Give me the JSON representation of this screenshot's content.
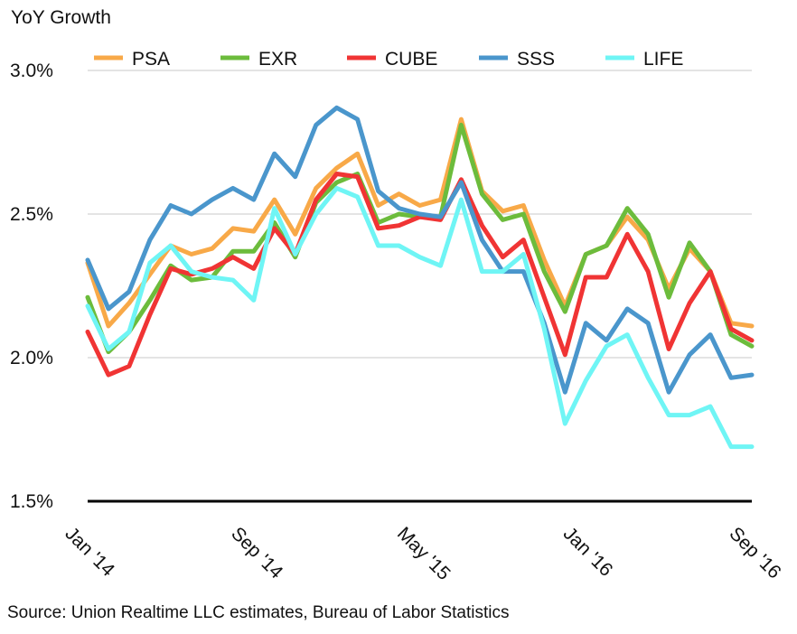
{
  "chart_data": {
    "type": "line",
    "ylabel": "YoY Growth",
    "ylim": [
      1.5,
      3.0
    ],
    "yticks": [
      1.5,
      2.0,
      2.5,
      3.0
    ],
    "ytick_labels": [
      "1.5%",
      "2.0%",
      "2.5%",
      "3.0%"
    ],
    "x": [
      "Jan '14",
      "Feb '14",
      "Mar '14",
      "Apr '14",
      "May '14",
      "Jun '14",
      "Jul '14",
      "Aug '14",
      "Sep '14",
      "Oct '14",
      "Nov '14",
      "Dec '14",
      "Jan '15",
      "Feb '15",
      "Mar '15",
      "Apr '15",
      "May '15",
      "Jun '15",
      "Jul '15",
      "Aug '15",
      "Sep '15",
      "Oct '15",
      "Nov '15",
      "Dec '15",
      "Jan '16",
      "Feb '16",
      "Mar '16",
      "Apr '16",
      "May '16",
      "Jun '16",
      "Jul '16",
      "Aug '16",
      "Sep '16"
    ],
    "xticks": [
      {
        "index": 0,
        "label": "Jan '14"
      },
      {
        "index": 8,
        "label": "Sep '14"
      },
      {
        "index": 16,
        "label": "May '15"
      },
      {
        "index": 24,
        "label": "Jan '16"
      },
      {
        "index": 32,
        "label": "Sep '16"
      }
    ],
    "grid": true,
    "legend_position": "top",
    "series": [
      {
        "name": "PSA",
        "color": "#F8A948",
        "values": [
          2.33,
          2.11,
          2.19,
          2.29,
          2.39,
          2.36,
          2.38,
          2.45,
          2.44,
          2.55,
          2.43,
          2.59,
          2.66,
          2.71,
          2.53,
          2.57,
          2.53,
          2.55,
          2.83,
          2.58,
          2.51,
          2.53,
          2.34,
          2.18,
          2.36,
          2.39,
          2.49,
          2.41,
          2.24,
          2.38,
          2.3,
          2.12,
          2.11
        ]
      },
      {
        "name": "EXR",
        "color": "#6CBC3C",
        "values": [
          2.21,
          2.02,
          2.09,
          2.2,
          2.32,
          2.27,
          2.28,
          2.37,
          2.37,
          2.47,
          2.35,
          2.54,
          2.61,
          2.64,
          2.47,
          2.5,
          2.49,
          2.49,
          2.81,
          2.57,
          2.48,
          2.5,
          2.3,
          2.16,
          2.36,
          2.39,
          2.52,
          2.43,
          2.21,
          2.4,
          2.3,
          2.08,
          2.04
        ]
      },
      {
        "name": "CUBE",
        "color": "#F03434",
        "values": [
          2.09,
          1.94,
          1.97,
          2.15,
          2.31,
          2.29,
          2.31,
          2.35,
          2.31,
          2.45,
          2.36,
          2.55,
          2.64,
          2.63,
          2.45,
          2.46,
          2.49,
          2.48,
          2.62,
          2.46,
          2.35,
          2.41,
          2.21,
          2.01,
          2.28,
          2.28,
          2.43,
          2.3,
          2.03,
          2.19,
          2.3,
          2.1,
          2.06
        ]
      },
      {
        "name": "SSS",
        "color": "#4A96CC",
        "values": [
          2.34,
          2.17,
          2.23,
          2.41,
          2.53,
          2.5,
          2.55,
          2.59,
          2.55,
          2.71,
          2.63,
          2.81,
          2.87,
          2.83,
          2.58,
          2.52,
          2.5,
          2.49,
          2.61,
          2.41,
          2.3,
          2.3,
          2.12,
          1.88,
          2.12,
          2.06,
          2.17,
          2.12,
          1.88,
          2.01,
          2.08,
          1.93,
          1.94
        ]
      },
      {
        "name": "LIFE",
        "color": "#6FF5F5",
        "values": [
          2.18,
          2.03,
          2.09,
          2.33,
          2.39,
          2.3,
          2.28,
          2.27,
          2.2,
          2.52,
          2.36,
          2.5,
          2.59,
          2.56,
          2.39,
          2.39,
          2.35,
          2.32,
          2.55,
          2.3,
          2.3,
          2.36,
          2.1,
          1.77,
          1.92,
          2.04,
          2.08,
          1.93,
          1.8,
          1.8,
          1.83,
          1.69,
          1.69
        ]
      }
    ]
  },
  "source_note": "Source: Union Realtime LLC estimates, Bureau of Labor Statistics"
}
